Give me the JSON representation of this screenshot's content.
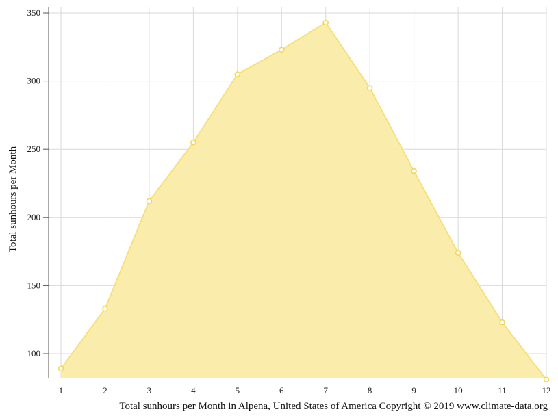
{
  "chart_data": {
    "type": "area",
    "x": [
      1,
      2,
      3,
      4,
      5,
      6,
      7,
      8,
      9,
      10,
      11,
      12
    ],
    "series": [
      {
        "values": [
          89,
          133,
          212,
          255,
          305,
          323,
          343,
          295,
          234,
          174,
          123,
          81
        ]
      }
    ],
    "xlabel": "",
    "ylabel": "Total sunhours per Month",
    "caption": "Total sunhours per Month in Alpena, United States of America Copyright © 2019 www.climate-data.org",
    "xlim": [
      1,
      12
    ],
    "ylim": [
      81,
      355
    ],
    "yticks": [
      100,
      150,
      200,
      250,
      300,
      350
    ],
    "xticks": [
      1,
      2,
      3,
      4,
      5,
      6,
      7,
      8,
      9,
      10,
      11,
      12
    ],
    "grid": true,
    "colors": {
      "fill": "#faeca6",
      "line": "#f7e07a",
      "marker_stroke": "#f2d54f",
      "marker_fill": "#ffffff",
      "grid": "#d9d9d9",
      "axis": "#555555"
    }
  }
}
